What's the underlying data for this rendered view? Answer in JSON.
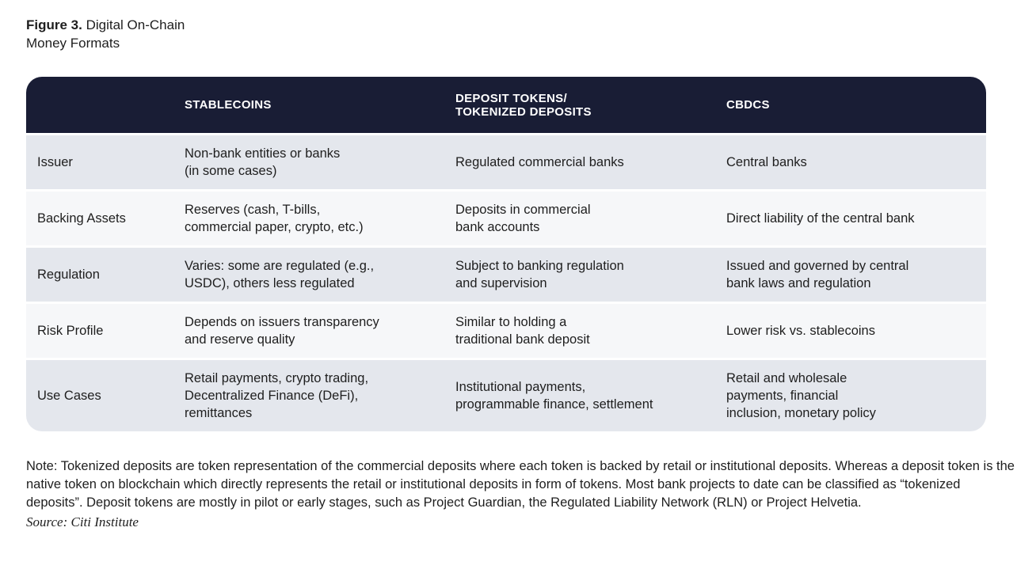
{
  "figure": {
    "title_prefix": "Figure 3.",
    "title_rest": " Digital On-Chain",
    "title_line2": "Money Formats"
  },
  "table": {
    "header": [
      "STABLECOINS",
      "DEPOSIT TOKENS/\nTOKENIZED DEPOSITS",
      "CBDCS"
    ],
    "rows": [
      {
        "label": "Issuer",
        "cells": [
          "Non-bank entities or banks\n(in some cases)",
          "Regulated commercial banks",
          "Central banks"
        ]
      },
      {
        "label": "Backing Assets",
        "cells": [
          "Reserves (cash, T-bills,\ncommercial paper, crypto, etc.)",
          "Deposits in commercial\nbank accounts",
          "Direct liability of the central bank"
        ]
      },
      {
        "label": "Regulation",
        "cells": [
          "Varies: some are regulated (e.g.,\nUSDC), others less regulated",
          "Subject to banking regulation\nand supervision",
          "Issued and governed by central\nbank laws and regulation"
        ]
      },
      {
        "label": "Risk Profile",
        "cells": [
          "Depends on issuers transparency\nand reserve quality",
          "Similar to holding a\ntraditional bank deposit",
          "Lower risk vs. stablecoins"
        ]
      },
      {
        "label": "Use Cases",
        "cells": [
          "Retail payments, crypto trading,\nDecentralized Finance (DeFi),\nremittances",
          "Institutional payments,\nprogrammable finance, settlement",
          "Retail and wholesale\npayments, financial\ninclusion, monetary policy"
        ]
      }
    ]
  },
  "note": "Note: Tokenized deposits are token representation of the commercial deposits where each token is backed by retail or institutional deposits. Whereas a deposit token is the native token on blockchain which directly represents the retail or institutional deposits in form of tokens. Most bank projects to date can be classified as “tokenized deposits”. Deposit tokens are mostly in pilot or early stages, such as Project Guardian, the Regulated Liability Network (RLN) or Project Helvetia.",
  "source": "Source: Citi Institute",
  "colors": {
    "page_bg": "#ffffff",
    "header_bg": "#191d35",
    "header_text": "#ffffff",
    "row_odd_bg": "#e4e7ed",
    "row_even_bg": "#f6f7f9",
    "text": "#1e1e1e"
  }
}
